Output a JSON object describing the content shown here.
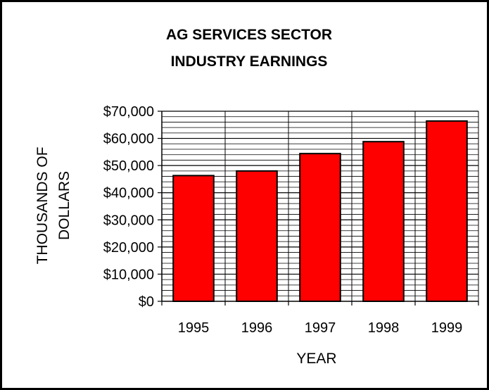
{
  "chart_data": {
    "type": "bar",
    "title_lines": [
      "AG SERVICES SECTOR",
      "INDUSTRY EARNINGS"
    ],
    "xlabel": "YEAR",
    "ylabel_lines": [
      "THOUSANDS OF",
      "DOLLARS"
    ],
    "categories": [
      "1995",
      "1996",
      "1997",
      "1998",
      "1999"
    ],
    "values": [
      46300,
      48000,
      54400,
      58800,
      66400
    ],
    "ylim": [
      0,
      70000
    ],
    "yticks": [
      "$0",
      "$10,000",
      "$20,000",
      "$30,000",
      "$40,000",
      "$50,000",
      "$60,000",
      "$70,000"
    ],
    "grid": true,
    "legend": "none",
    "colors": {
      "bar": "#ff0000",
      "border": "#000000",
      "grid": "#000000"
    }
  }
}
